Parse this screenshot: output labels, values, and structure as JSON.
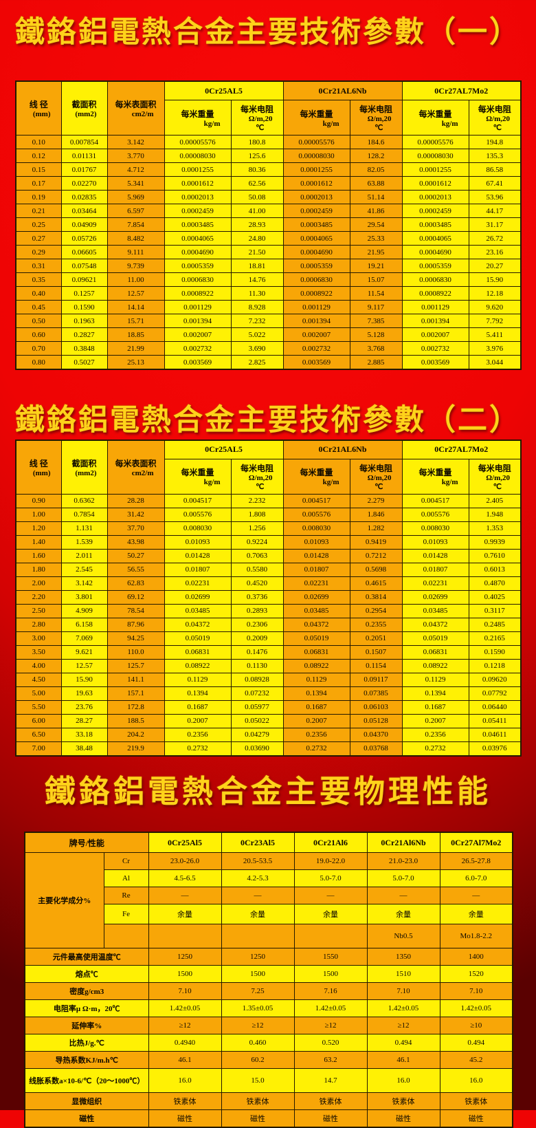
{
  "titles": {
    "t1": "鐵鉻鋁電熱合金主要技術參數（一）",
    "t2": "鐵鉻鋁電熱合金主要技術參數（二）",
    "t3": "鐵鉻鋁電熱合金主要物理性能"
  },
  "colors": {
    "orange_cell": "#f8a607",
    "yellow_cell": "#fff104",
    "background_red": "#ee0404",
    "title_gold": "#ffd31a"
  },
  "param_header": {
    "d_label": "线 径",
    "d_unit": "(mm)",
    "a_label": "截面积",
    "a_unit": "(mm2)",
    "s_label": "每米表面积",
    "s_unit": "cm2/m",
    "alloys": [
      "0Cr25AL5",
      "0Cr21AL6Nb",
      "0Cr27AL7Mo2"
    ],
    "w_label": "每米重量",
    "w_unit": "kg/m",
    "r_label": "每米电阻",
    "r_unit": "Ω/m,20",
    "r_unit2": "℃"
  },
  "table1": {
    "rows": [
      [
        "0.10",
        "0.007854",
        "3.142",
        "0.00005576",
        "180.8",
        "0.00005576",
        "184.6",
        "0.00005576",
        "194.8"
      ],
      [
        "0.12",
        "0.01131",
        "3.770",
        "0.00008030",
        "125.6",
        "0.00008030",
        "128.2",
        "0.00008030",
        "135.3"
      ],
      [
        "0.15",
        "0.01767",
        "4.712",
        "0.0001255",
        "80.36",
        "0.0001255",
        "82.05",
        "0.0001255",
        "86.58"
      ],
      [
        "0.17",
        "0.02270",
        "5.341",
        "0.0001612",
        "62.56",
        "0.0001612",
        "63.88",
        "0.0001612",
        "67.41"
      ],
      [
        "0.19",
        "0.02835",
        "5.969",
        "0.0002013",
        "50.08",
        "0.0002013",
        "51.14",
        "0.0002013",
        "53.96"
      ],
      [
        "0.21",
        "0.03464",
        "6.597",
        "0.0002459",
        "41.00",
        "0.0002459",
        "41.86",
        "0.0002459",
        "44.17"
      ],
      [
        "0.25",
        "0.04909",
        "7.854",
        "0.0003485",
        "28.93",
        "0.0003485",
        "29.54",
        "0.0003485",
        "31.17"
      ],
      [
        "0.27",
        "0.05726",
        "8.482",
        "0.0004065",
        "24.80",
        "0.0004065",
        "25.33",
        "0.0004065",
        "26.72"
      ],
      [
        "0.29",
        "0.06605",
        "9.111",
        "0.0004690",
        "21.50",
        "0.0004690",
        "21.95",
        "0.0004690",
        "23.16"
      ],
      [
        "0.31",
        "0.07548",
        "9.739",
        "0.0005359",
        "18.81",
        "0.0005359",
        "19.21",
        "0.0005359",
        "20.27"
      ],
      [
        "0.35",
        "0.09621",
        "11.00",
        "0.0006830",
        "14.76",
        "0.0006830",
        "15.07",
        "0.0006830",
        "15.90"
      ],
      [
        "0.40",
        "0.1257",
        "12.57",
        "0.0008922",
        "11.30",
        "0.0008922",
        "11.54",
        "0.0008922",
        "12.18"
      ],
      [
        "0.45",
        "0.1590",
        "14.14",
        "0.001129",
        "8.928",
        "0.001129",
        "9.117",
        "0.001129",
        "9.620"
      ],
      [
        "0.50",
        "0.1963",
        "15.71",
        "0.001394",
        "7.232",
        "0.001394",
        "7.385",
        "0.001394",
        "7.792"
      ],
      [
        "0.60",
        "0.2827",
        "18.85",
        "0.002007",
        "5.022",
        "0.002007",
        "5.128",
        "0.002007",
        "5.411"
      ],
      [
        "0.70",
        "0.3848",
        "21.99",
        "0.002732",
        "3.690",
        "0.002732",
        "3.768",
        "0.002732",
        "3.976"
      ],
      [
        "0.80",
        "0.5027",
        "25.13",
        "0.003569",
        "2.825",
        "0.003569",
        "2.885",
        "0.003569",
        "3.044"
      ]
    ]
  },
  "table2": {
    "rows": [
      [
        "0.90",
        "0.6362",
        "28.28",
        "0.004517",
        "2.232",
        "0.004517",
        "2.279",
        "0.004517",
        "2.405"
      ],
      [
        "1.00",
        "0.7854",
        "31.42",
        "0.005576",
        "1.808",
        "0.005576",
        "1.846",
        "0.005576",
        "1.948"
      ],
      [
        "1.20",
        "1.131",
        "37.70",
        "0.008030",
        "1.256",
        "0.008030",
        "1.282",
        "0.008030",
        "1.353"
      ],
      [
        "1.40",
        "1.539",
        "43.98",
        "0.01093",
        "0.9224",
        "0.01093",
        "0.9419",
        "0.01093",
        "0.9939"
      ],
      [
        "1.60",
        "2.011",
        "50.27",
        "0.01428",
        "0.7063",
        "0.01428",
        "0.7212",
        "0.01428",
        "0.7610"
      ],
      [
        "1.80",
        "2.545",
        "56.55",
        "0.01807",
        "0.5580",
        "0.01807",
        "0.5698",
        "0.01807",
        "0.6013"
      ],
      [
        "2.00",
        "3.142",
        "62.83",
        "0.02231",
        "0.4520",
        "0.02231",
        "0.4615",
        "0.02231",
        "0.4870"
      ],
      [
        "2.20",
        "3.801",
        "69.12",
        "0.02699",
        "0.3736",
        "0.02699",
        "0.3814",
        "0.02699",
        "0.4025"
      ],
      [
        "2.50",
        "4.909",
        "78.54",
        "0.03485",
        "0.2893",
        "0.03485",
        "0.2954",
        "0.03485",
        "0.3117"
      ],
      [
        "2.80",
        "6.158",
        "87.96",
        "0.04372",
        "0.2306",
        "0.04372",
        "0.2355",
        "0.04372",
        "0.2485"
      ],
      [
        "3.00",
        "7.069",
        "94.25",
        "0.05019",
        "0.2009",
        "0.05019",
        "0.2051",
        "0.05019",
        "0.2165"
      ],
      [
        "3.50",
        "9.621",
        "110.0",
        "0.06831",
        "0.1476",
        "0.06831",
        "0.1507",
        "0.06831",
        "0.1590"
      ],
      [
        "4.00",
        "12.57",
        "125.7",
        "0.08922",
        "0.1130",
        "0.08922",
        "0.1154",
        "0.08922",
        "0.1218"
      ],
      [
        "4.50",
        "15.90",
        "141.1",
        "0.1129",
        "0.08928",
        "0.1129",
        "0.09117",
        "0.1129",
        "0.09620"
      ],
      [
        "5.00",
        "19.63",
        "157.1",
        "0.1394",
        "0.07232",
        "0.1394",
        "0.07385",
        "0.1394",
        "0.07792"
      ],
      [
        "5.50",
        "23.76",
        "172.8",
        "0.1687",
        "0.05977",
        "0.1687",
        "0.06103",
        "0.1687",
        "0.06440"
      ],
      [
        "6.00",
        "28.27",
        "188.5",
        "0.2007",
        "0.05022",
        "0.2007",
        "0.05128",
        "0.2007",
        "0.05411"
      ],
      [
        "6.50",
        "33.18",
        "204.2",
        "0.2356",
        "0.04279",
        "0.2356",
        "0.04370",
        "0.2356",
        "0.04611"
      ],
      [
        "7.00",
        "38.48",
        "219.9",
        "0.2732",
        "0.03690",
        "0.2732",
        "0.03768",
        "0.2732",
        "0.03976"
      ]
    ]
  },
  "phys": {
    "header_label": "牌号/性能",
    "alloys": [
      "0Cr25Al5",
      "0Cr23Al5",
      "0Cr21Al6",
      "0Cr21Al6Nb",
      "0Cr27Al7Mo2"
    ],
    "chem_label": "主要化学成分%",
    "chem_rows": [
      {
        "element": "Cr",
        "values": [
          "23.0-26.0",
          "20.5-53.5",
          "19.0-22.0",
          "21.0-23.0",
          "26.5-27.8"
        ]
      },
      {
        "element": "Al",
        "values": [
          "4.5-6.5",
          "4.2-5.3",
          "5.0-7.0",
          "5.0-7.0",
          "6.0-7.0"
        ]
      },
      {
        "element": "Re",
        "values": [
          "—",
          "—",
          "—",
          "—",
          "—"
        ]
      },
      {
        "element": "Fe",
        "values": [
          "余量",
          "余量",
          "余量",
          "余量",
          "余量"
        ]
      },
      {
        "element": "",
        "values": [
          "",
          "",
          "",
          "Nb0.5",
          "Mo1.8-2.2"
        ]
      }
    ],
    "prop_rows": [
      {
        "label": "元件最高使用温度℃",
        "values": [
          "1250",
          "1250",
          "1550",
          "1350",
          "1400"
        ]
      },
      {
        "label": "熔点℃",
        "values": [
          "1500",
          "1500",
          "1500",
          "1510",
          "1520"
        ]
      },
      {
        "label": "密度g/cm3",
        "values": [
          "7.10",
          "7.25",
          "7.16",
          "7.10",
          "7.10"
        ]
      },
      {
        "label": "电阻率μ Ω·m，20℃",
        "values": [
          "1.42±0.05",
          "1.35±0.05",
          "1.42±0.05",
          "1.42±0.05",
          "1.42±0.05"
        ]
      },
      {
        "label": "延伸率%",
        "values": [
          "≥12",
          "≥12",
          "≥12",
          "≥12",
          "≥10"
        ]
      },
      {
        "label": "比热J/g.℃",
        "values": [
          "0.4940",
          "0.460",
          "0.520",
          "0.494",
          "0.494"
        ]
      },
      {
        "label": "导热系数KJ/m.h℃",
        "values": [
          "46.1",
          "60.2",
          "63.2",
          "46.1",
          "45.2"
        ]
      },
      {
        "label": "线胀系数a×10-6/℃（20～1000℃）",
        "values": [
          "16.0",
          "15.0",
          "14.7",
          "16.0",
          "16.0"
        ]
      },
      {
        "label": "显微组织",
        "values": [
          "铁素体",
          "铁素体",
          "铁素体",
          "铁素体",
          "铁素体"
        ]
      },
      {
        "label": "磁性",
        "values": [
          "磁性",
          "磁性",
          "磁性",
          "磁性",
          "磁性"
        ]
      }
    ]
  }
}
